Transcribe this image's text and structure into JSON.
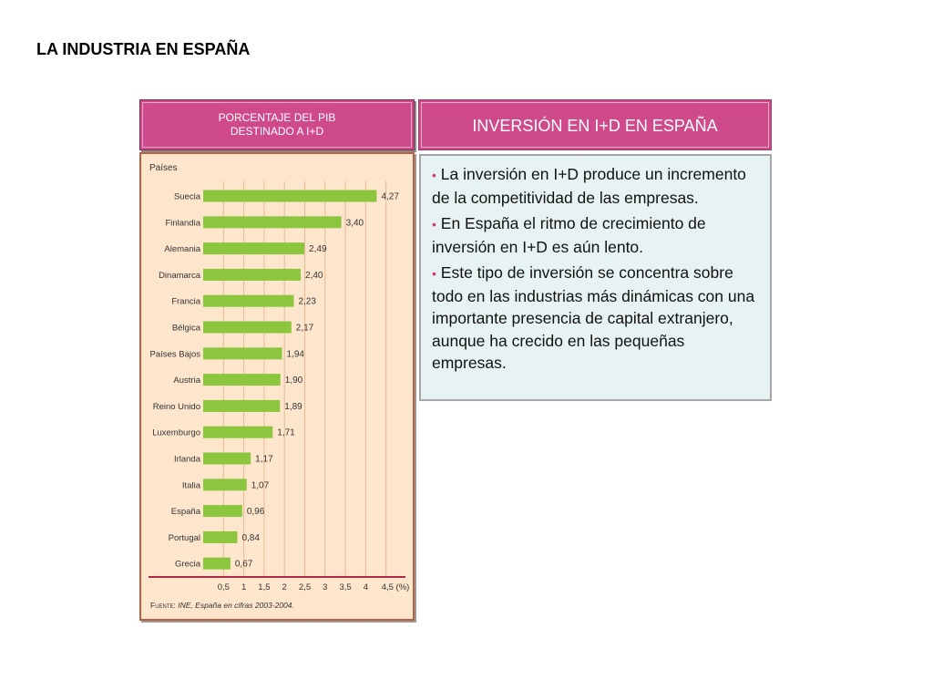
{
  "page": {
    "title": "LA INDUSTRIA EN ESPAÑA"
  },
  "left_header": {
    "line1": "PORCENTAJE DEL PIB",
    "line2": "DESTINADO A I+D"
  },
  "right_header": {
    "title": "INVERSIÓN EN I+D EN ESPAÑA"
  },
  "text_panel": {
    "bullets": [
      "La inversión en I+D produce un incremento de la competitividad de las empresas.",
      "En España el ritmo de crecimiento de inversión en I+D es aún lento.",
      "Este tipo de inversión se concentra sobre todo en las industrias más dinámicas con una importante presencia de capital extranjero, aunque ha crecido en las pequeñas empresas."
    ]
  },
  "chart_data": {
    "type": "bar",
    "orientation": "horizontal",
    "category_axis_title": "Países",
    "categories": [
      "Suecia",
      "Finlandia",
      "Alemania",
      "Dinamarca",
      "Francia",
      "Bélgica",
      "Países Bajos",
      "Austria",
      "Reino Unido",
      "Luxemburgo",
      "Irlanda",
      "Italia",
      "España",
      "Portugal",
      "Grecia"
    ],
    "values": [
      4.27,
      3.4,
      2.49,
      2.4,
      2.23,
      2.17,
      1.94,
      1.9,
      1.89,
      1.71,
      1.17,
      1.07,
      0.96,
      0.84,
      0.67
    ],
    "value_labels": [
      "4,27",
      "3,40",
      "2,49",
      "2,40",
      "2,23",
      "2,17",
      "1,94",
      "1,90",
      "1,89",
      "1,71",
      "1,17",
      "1,07",
      "0,96",
      "0,84",
      "0,67"
    ],
    "x_ticks": [
      0.5,
      1,
      1.5,
      2,
      2.5,
      3,
      3.5,
      4,
      4.5
    ],
    "x_tick_labels": [
      "0,5",
      "1",
      "1,5",
      "2",
      "2,5",
      "3",
      "3,5",
      "4",
      "4,5 (%)"
    ],
    "xlim": [
      0,
      4.5
    ],
    "grid": true,
    "bar_color": "#8cc63f",
    "source": {
      "label": "Fuente:",
      "text": "INE, España en cifras 2003-2004."
    }
  },
  "colors": {
    "accent": "#cf4a8a",
    "chart_bg": "#fde6cc",
    "text_bg": "#e7f3f3"
  }
}
